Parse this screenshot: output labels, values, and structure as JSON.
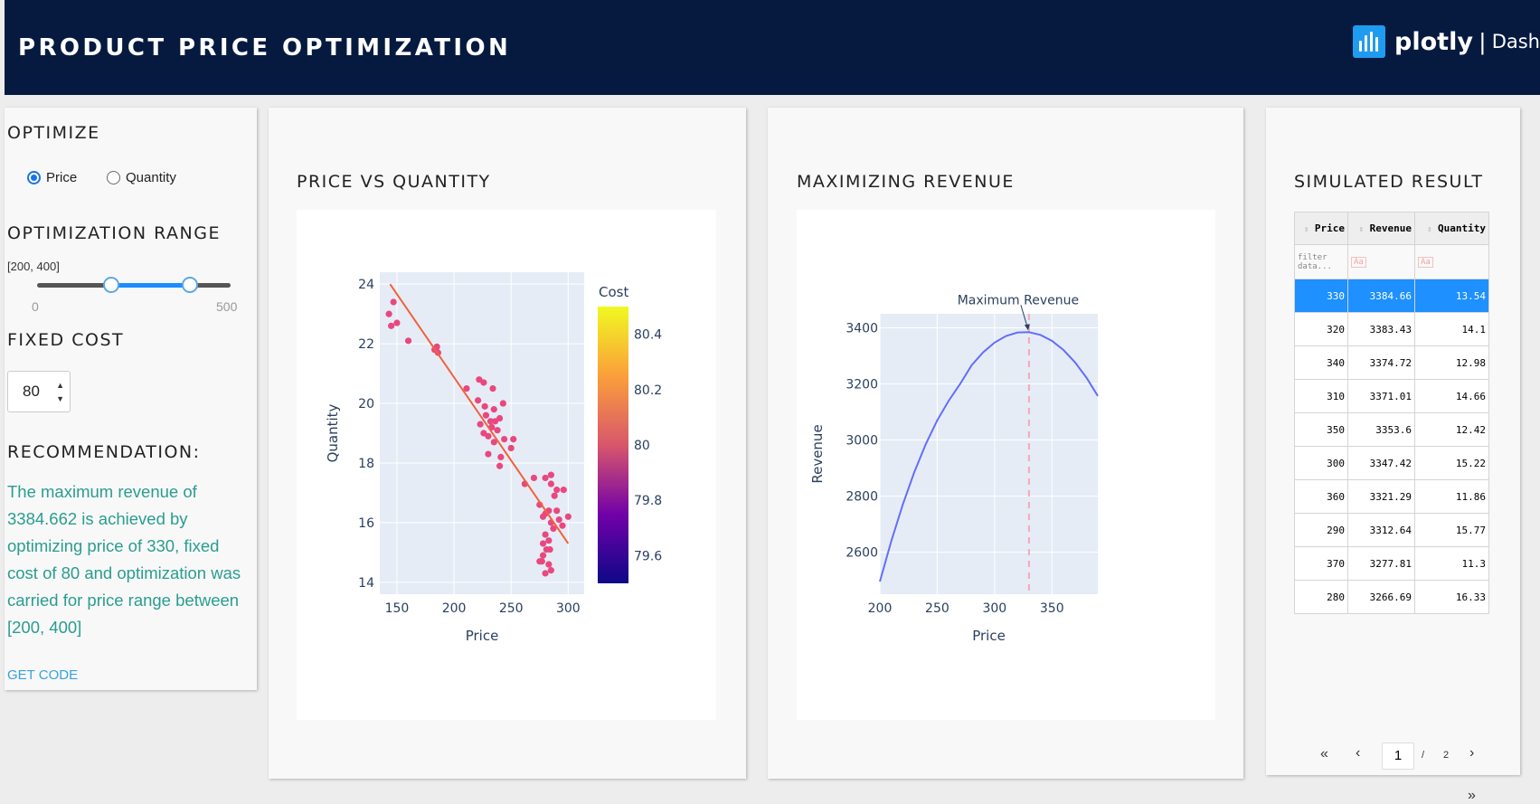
{
  "header": {
    "title": "PRODUCT PRICE OPTIMIZATION",
    "logo_text": "plotly",
    "logo_sep": "|",
    "logo_dash": "Dash"
  },
  "left": {
    "optimize_title": "OPTIMIZE",
    "radio_price": "Price",
    "radio_quantity": "Quantity",
    "range_title": "OPTIMIZATION RANGE",
    "range_value": "[200, 400]",
    "slider_min": "0",
    "slider_max": "500",
    "fixed_cost_title": "FIXED COST",
    "fixed_cost_value": "80",
    "reco_title": "RECOMMENDATION:",
    "reco_text": "The maximum revenue of 3384.662 is achieved by optimizing price of 330, fixed cost of 80 and optimization was carried for price range between [200, 400]",
    "get_code": "GET CODE"
  },
  "pvq": {
    "title": "PRICE VS QUANTITY"
  },
  "rev": {
    "title": "MAXIMIZING REVENUE"
  },
  "sim": {
    "title": "SIMULATED RESULT",
    "columns": [
      "Price",
      "Revenue",
      "Quantity"
    ],
    "filter_placeholder": "filter data...",
    "filter_case": "Aa",
    "rows": [
      [
        "330",
        "3384.66",
        "13.54"
      ],
      [
        "320",
        "3383.43",
        "14.1"
      ],
      [
        "340",
        "3374.72",
        "12.98"
      ],
      [
        "310",
        "3371.01",
        "14.66"
      ],
      [
        "350",
        "3353.6",
        "12.42"
      ],
      [
        "300",
        "3347.42",
        "15.22"
      ],
      [
        "360",
        "3321.29",
        "11.86"
      ],
      [
        "290",
        "3312.64",
        "15.77"
      ],
      [
        "370",
        "3277.81",
        "11.3"
      ],
      [
        "280",
        "3266.69",
        "16.33"
      ]
    ],
    "pager": {
      "first": "«",
      "prev": "‹",
      "current": "1",
      "sep": "/",
      "total": "2",
      "next": "›",
      "last": "»"
    }
  },
  "chart_data": [
    {
      "type": "scatter",
      "title": "",
      "xlabel": "Price",
      "ylabel": "Quantity",
      "xlim": [
        135,
        314
      ],
      "ylim": [
        13.6,
        24.4
      ],
      "xticks": [
        150,
        200,
        250,
        300
      ],
      "yticks": [
        14,
        16,
        18,
        20,
        22,
        24
      ],
      "colorbar": {
        "title": "Cost",
        "ticks": [
          "80.4",
          "80.2",
          "80",
          "79.8",
          "79.6"
        ],
        "range": [
          79.5,
          80.5
        ]
      },
      "point_color": "#e8487f",
      "fit_line_color": "#f2613a",
      "fit_line": [
        [
          144,
          24.0
        ],
        [
          300,
          15.3
        ]
      ],
      "points": [
        [
          143,
          23.0
        ],
        [
          147,
          23.4
        ],
        [
          145,
          22.6
        ],
        [
          150,
          22.7
        ],
        [
          160,
          22.1
        ],
        [
          183,
          21.8
        ],
        [
          185,
          21.9
        ],
        [
          186,
          21.7
        ],
        [
          211,
          20.5
        ],
        [
          222,
          20.8
        ],
        [
          226,
          20.7
        ],
        [
          234,
          20.5
        ],
        [
          221,
          20.1
        ],
        [
          227,
          19.9
        ],
        [
          235,
          19.8
        ],
        [
          243,
          20.0
        ],
        [
          228,
          19.6
        ],
        [
          223,
          19.3
        ],
        [
          232,
          19.4
        ],
        [
          236,
          19.4
        ],
        [
          240,
          19.5
        ],
        [
          238,
          19.1
        ],
        [
          226,
          19.0
        ],
        [
          230,
          18.9
        ],
        [
          233,
          19.2
        ],
        [
          235,
          18.7
        ],
        [
          244,
          18.8
        ],
        [
          252,
          18.8
        ],
        [
          250,
          18.5
        ],
        [
          230,
          18.3
        ],
        [
          241,
          18.2
        ],
        [
          240,
          17.9
        ],
        [
          270,
          17.5
        ],
        [
          280,
          17.5
        ],
        [
          285,
          17.6
        ],
        [
          262,
          17.3
        ],
        [
          285,
          17.3
        ],
        [
          290,
          17.1
        ],
        [
          296,
          17.1
        ],
        [
          288,
          16.9
        ],
        [
          275,
          16.6
        ],
        [
          283,
          16.4
        ],
        [
          280,
          16.3
        ],
        [
          278,
          16.2
        ],
        [
          290,
          16.4
        ],
        [
          300,
          16.2
        ],
        [
          285,
          16.0
        ],
        [
          292,
          16.1
        ],
        [
          287,
          15.8
        ],
        [
          295,
          15.9
        ],
        [
          280,
          15.6
        ],
        [
          283,
          15.4
        ],
        [
          278,
          15.3
        ],
        [
          281,
          15.1
        ],
        [
          284,
          15.1
        ],
        [
          278,
          14.9
        ],
        [
          277,
          14.7
        ],
        [
          283,
          14.6
        ],
        [
          280,
          14.3
        ],
        [
          285,
          14.4
        ],
        [
          275,
          14.7
        ]
      ]
    },
    {
      "type": "line",
      "title": "",
      "xlabel": "Price",
      "ylabel": "Revenue",
      "xlim": [
        200,
        390
      ],
      "ylim": [
        2450,
        3450
      ],
      "xticks": [
        200,
        250,
        300,
        350
      ],
      "yticks": [
        2600,
        2800,
        3000,
        3200,
        3400
      ],
      "line_color": "#636efa",
      "vline": {
        "x": 330,
        "color": "#f7a8b8"
      },
      "annotation": {
        "text": "Maximum Revenue",
        "x": 330,
        "y": 3384.66
      },
      "x": [
        200,
        210,
        220,
        230,
        240,
        250,
        260,
        270,
        280,
        290,
        300,
        310,
        320,
        330,
        340,
        350,
        360,
        370,
        380,
        390
      ],
      "y": [
        2495,
        2640,
        2770,
        2885,
        2985,
        3070,
        3140,
        3200,
        3266.69,
        3312.64,
        3347.42,
        3371.01,
        3383.43,
        3384.66,
        3374.72,
        3353.6,
        3321.29,
        3277.81,
        3223,
        3157
      ]
    }
  ]
}
